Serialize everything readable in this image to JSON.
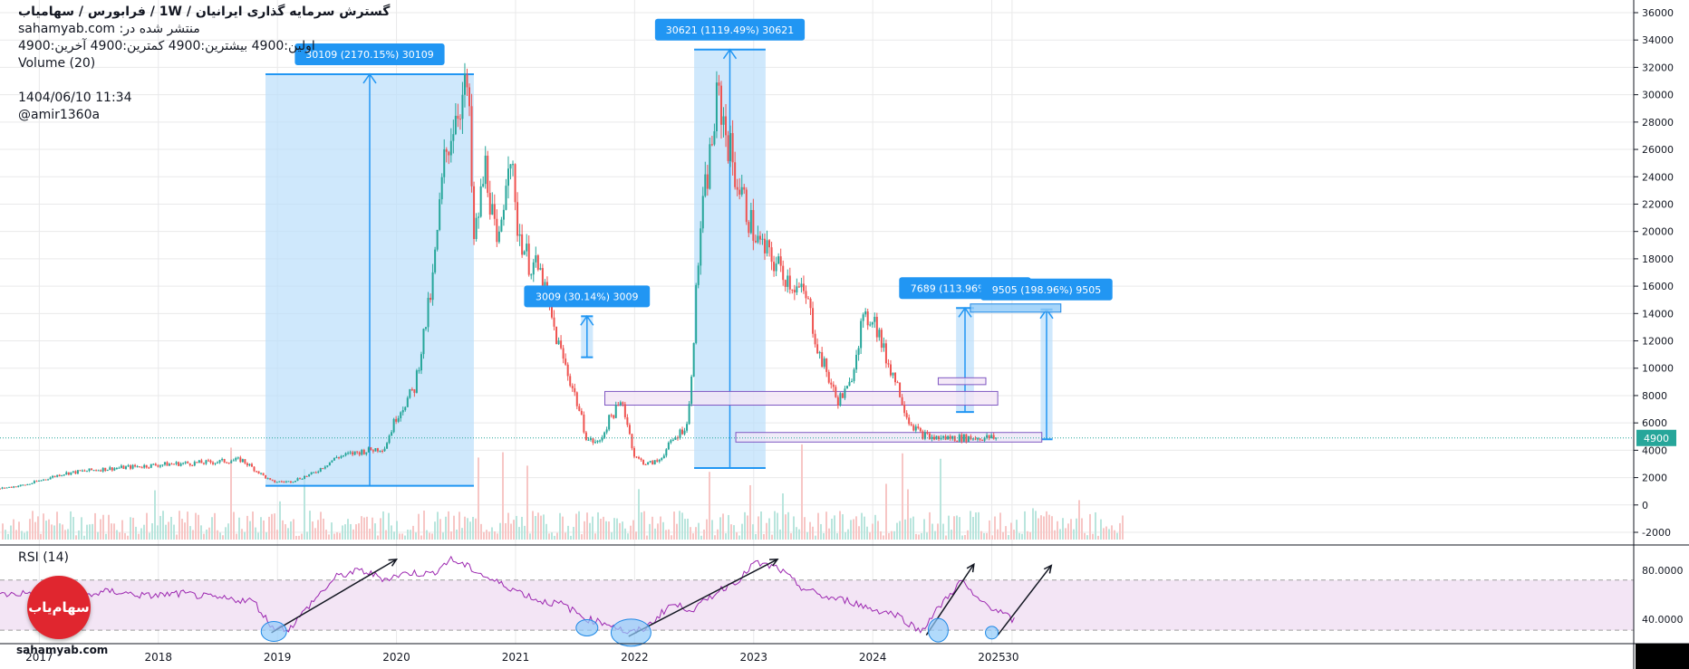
{
  "header": {
    "title": "گسترش سرمایه گذاری ایرانیان / 1W / فرابورس / سهامیاب",
    "published": "منتشر شده در: sahamyab.com",
    "ohlc": "اولین:4900 بیشترین:4900 کمترین:4900 آخرین:4900",
    "volume": "Volume (20)",
    "date": "1404/06/10 11:34",
    "author": "@amir1360a"
  },
  "rsi_label": "RSI (14)",
  "logo_text": "سهام‌یاب",
  "watermark": "sahamyab.com",
  "colors": {
    "up": "#26a69a",
    "down": "#ef5350",
    "rsi": "#9c27b0",
    "rsi_band": "#f3e5f5",
    "measure_fill": "#bbdefb",
    "measure_line": "#2196f3",
    "label_bg": "#2196f3",
    "price_label": "#26a69a"
  },
  "chart_data": [
    {
      "type": "line",
      "title": "",
      "xlabel": "",
      "ylabel": "",
      "x_ticks": [
        "2017",
        "2018",
        "2019",
        "2020",
        "2021",
        "2022",
        "2023",
        "2024",
        "2025",
        "30"
      ],
      "x_range": [
        2016.67,
        2025.2
      ],
      "ylim": [
        -2000,
        36000
      ],
      "y_ticks": [
        -2000,
        0,
        2000,
        4000,
        6000,
        8000,
        10000,
        12000,
        14000,
        16000,
        18000,
        20000,
        22000,
        24000,
        26000,
        28000,
        30000,
        32000,
        34000,
        36000
      ],
      "current_price": 4900,
      "series": [
        {
          "x": [
            2016.67,
            2016.9,
            2017.2,
            2017.5,
            2017.8,
            2018.1,
            2018.4,
            2018.7,
            2018.95,
            2019.1,
            2019.3,
            2019.5,
            2019.7,
            2019.9,
            2020.0,
            2020.15,
            2020.3,
            2020.4,
            2020.5,
            2020.6,
            2020.65,
            2020.75,
            2020.85,
            2020.95,
            2021.0,
            2021.1,
            2021.2,
            2021.35,
            2021.5,
            2021.6,
            2021.7,
            2021.8,
            2021.9,
            2022.0,
            2022.1,
            2022.2,
            2022.3,
            2022.45,
            2022.55,
            2022.7,
            2022.85,
            2023.0,
            2023.05,
            2023.15,
            2023.25,
            2023.35,
            2023.45,
            2023.55,
            2023.6,
            2023.7,
            2023.8,
            2023.9,
            2024.0,
            2024.1,
            2024.2,
            2024.3,
            2024.4,
            2024.5,
            2024.6,
            2024.7,
            2024.8,
            2024.9,
            2025.0,
            2025.05,
            2025.1,
            2025.2
          ],
          "values": [
            1200,
            1500,
            2300,
            2600,
            2800,
            3000,
            3100,
            3300,
            1700,
            1700,
            2300,
            3500,
            3900,
            4200,
            6500,
            8500,
            16000,
            25000,
            29000,
            30500,
            19000,
            25000,
            18000,
            27000,
            21000,
            18000,
            17000,
            12000,
            8000,
            4800,
            4500,
            6500,
            7500,
            3500,
            3000,
            3200,
            4500,
            6000,
            20000,
            30000,
            24000,
            20000,
            19000,
            18000,
            17000,
            16000,
            15000,
            11000,
            10000,
            7600,
            8500,
            13000,
            14000,
            11000,
            9000,
            6200,
            5200,
            4900,
            4900,
            4900,
            4900,
            4900,
            4900,
            4900,
            4900,
            4900
          ]
        }
      ],
      "measurements": [
        {
          "label": "30109 (2170.15%) 30109",
          "x0": 2018.9,
          "x1": 2020.65,
          "y0": 1400,
          "y1": 31500
        },
        {
          "label": "3009 (30.14%) 3009",
          "x0": 2021.55,
          "x1": 2021.65,
          "y0": 10800,
          "y1": 13800
        },
        {
          "label": "30621 (1119.49%) 30621",
          "x0": 2022.5,
          "x1": 2023.1,
          "y0": 2700,
          "y1": 33300
        },
        {
          "label": "7689 (113.96%) 7689",
          "x0": 2024.7,
          "x1": 2024.85,
          "y0": 6800,
          "y1": 14400
        },
        {
          "label": "9505 (198.96%) 9505",
          "x0": 2025.41,
          "x1": 2025.51,
          "y0": 4800,
          "y1": 14300
        }
      ]
    },
    {
      "type": "line",
      "title": "RSI (14)",
      "ylim": [
        20,
        100
      ],
      "y_ticks": [
        40,
        80
      ],
      "y_tick_labels": [
        "40.0000",
        "80.0000"
      ],
      "bands": [
        31,
        72
      ],
      "series": [
        {
          "name": "RSI (14)",
          "x": [
            2016.67,
            2017.0,
            2017.3,
            2017.6,
            2017.9,
            2018.2,
            2018.5,
            2018.8,
            2018.95,
            2019.1,
            2019.3,
            2019.5,
            2019.7,
            2019.9,
            2020.1,
            2020.3,
            2020.45,
            2020.6,
            2020.8,
            2021.0,
            2021.2,
            2021.4,
            2021.6,
            2021.8,
            2021.95,
            2022.1,
            2022.3,
            2022.5,
            2022.7,
            2022.9,
            2023.0,
            2023.2,
            2023.4,
            2023.6,
            2023.8,
            2024.0,
            2024.2,
            2024.4,
            2024.6,
            2024.75,
            2024.85,
            2025.0,
            2025.2
          ],
          "values": [
            60,
            62,
            58,
            63,
            59,
            61,
            57,
            55,
            34,
            32,
            55,
            75,
            80,
            73,
            78,
            77,
            89,
            83,
            72,
            64,
            55,
            52,
            40,
            36,
            28,
            33,
            52,
            48,
            63,
            74,
            86,
            82,
            66,
            58,
            55,
            48,
            44,
            30,
            55,
            72,
            58,
            50,
            38
          ]
        }
      ]
    }
  ]
}
